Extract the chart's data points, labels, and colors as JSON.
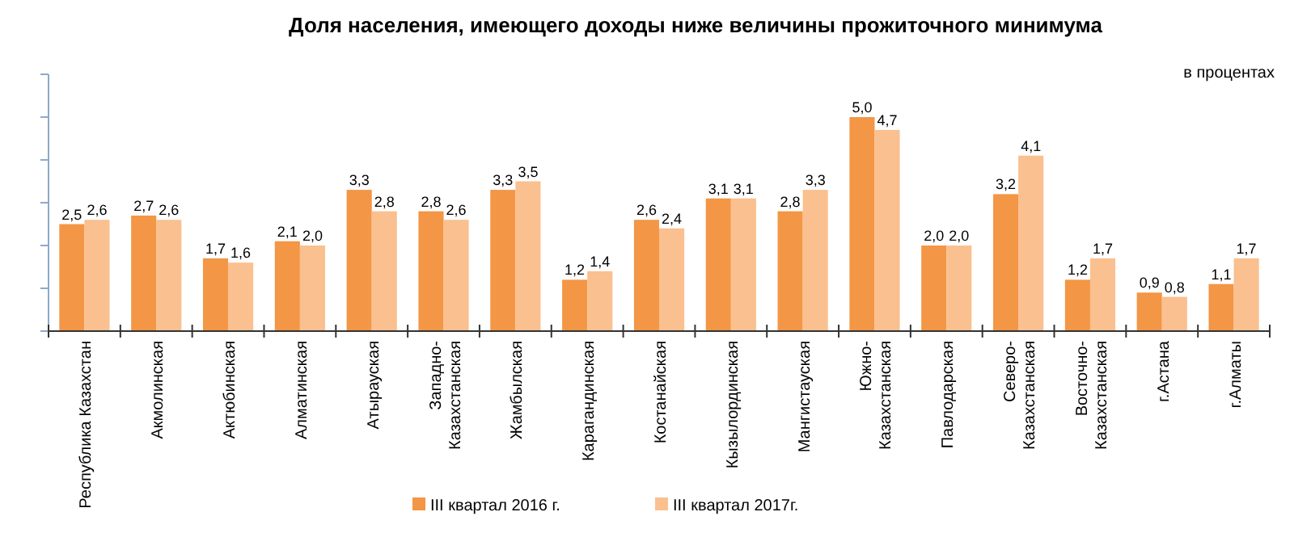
{
  "chart_data": {
    "type": "bar",
    "title": "Доля населения, имеющего доходы ниже величины  прожиточного  минимума",
    "annotations": [
      "в процентах"
    ],
    "categories": [
      "Республика Казахстан",
      "Акмолинская",
      "Актюбинская",
      "Алматинская",
      "Атырауская",
      "Западно-Казахстанская",
      "Жамбылская",
      "Карагандинская",
      "Костанайская",
      "Кызылординская",
      "Мангистауская",
      "Южно-Казахстанская",
      "Павлодарская",
      "Северо-Казахстанская",
      "Восточно-Казахстанская",
      "г.Астана",
      "г.Алматы"
    ],
    "series": [
      {
        "name": "III квартал 2016 г.",
        "color": "#f39645",
        "values": [
          2.5,
          2.7,
          1.7,
          2.1,
          3.3,
          2.8,
          3.3,
          1.2,
          2.6,
          3.1,
          2.8,
          5.0,
          2.0,
          3.2,
          1.2,
          0.9,
          1.1
        ],
        "value_labels": [
          "2,5",
          "2,7",
          "1,7",
          "2,1",
          "3,3",
          "2,8",
          "3,3",
          "1,2",
          "2,6",
          "3,1",
          "2,8",
          "5,0",
          "2,0",
          "3,2",
          "1,2",
          "0,9",
          "1,1"
        ]
      },
      {
        "name": "III квартал 2017г.",
        "color": "#fac08f",
        "values": [
          2.6,
          2.6,
          1.6,
          2.0,
          2.8,
          2.6,
          3.5,
          1.4,
          2.4,
          3.1,
          3.3,
          4.7,
          2.0,
          4.1,
          1.7,
          0.8,
          1.7
        ],
        "value_labels": [
          "2,6",
          "2,6",
          "1,6",
          "2,0",
          "2,8",
          "2,6",
          "3,5",
          "1,4",
          "2,4",
          "3,1",
          "3,3",
          "4,7",
          "2,0",
          "4,1",
          "1,7",
          "0,8",
          "1,7"
        ]
      }
    ],
    "ylim": [
      0,
      6
    ],
    "yticks": [
      {
        "value": 0,
        "label": null
      },
      {
        "value": 1,
        "label": null
      },
      {
        "value": 2,
        "label": null
      },
      {
        "value": 3,
        "label": null
      },
      {
        "value": 4,
        "label": null
      },
      {
        "value": 5,
        "label": null
      },
      {
        "value": 6,
        "label": null
      }
    ],
    "tick_labels": "x",
    "grid": false,
    "legend": "bottom"
  }
}
